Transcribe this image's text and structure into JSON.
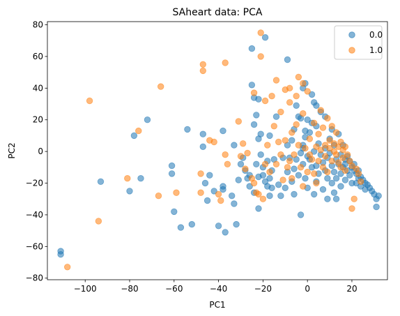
{
  "chart_data": {
    "type": "scatter",
    "title": "SAheart data: PCA",
    "xlabel": "PC1",
    "ylabel": "PC2",
    "xlim": [
      -117,
      36
    ],
    "ylim": [
      -81,
      82
    ],
    "x_ticks": [
      -100,
      -80,
      -60,
      -40,
      -20,
      0,
      20
    ],
    "y_ticks": [
      -80,
      -60,
      -40,
      -20,
      0,
      20,
      40,
      60,
      80
    ],
    "grid": false,
    "legend_position": "top-right",
    "series": [
      {
        "name": "0.0",
        "color": "#1f77b4",
        "points": [
          [
            -111,
            -63
          ],
          [
            -111,
            -65
          ],
          [
            -93,
            -19
          ],
          [
            -80,
            -25
          ],
          [
            -78,
            10
          ],
          [
            -75,
            -17
          ],
          [
            -72,
            20
          ],
          [
            -61,
            -9
          ],
          [
            -61,
            -14
          ],
          [
            -60,
            -38
          ],
          [
            -57,
            -48
          ],
          [
            -54,
            14
          ],
          [
            -52,
            -46
          ],
          [
            -47,
            11
          ],
          [
            -47,
            3
          ],
          [
            -46,
            -20
          ],
          [
            -45,
            -31
          ],
          [
            -44,
            -15
          ],
          [
            -42,
            -25
          ],
          [
            -40,
            -47
          ],
          [
            -38,
            -22
          ],
          [
            -38,
            -24
          ],
          [
            -38,
            13
          ],
          [
            -37,
            -51
          ],
          [
            -34,
            -28
          ],
          [
            -33,
            4
          ],
          [
            -33,
            -33
          ],
          [
            -32,
            -46
          ],
          [
            -31,
            -18
          ],
          [
            -30,
            -8
          ],
          [
            -29,
            -4
          ],
          [
            -28,
            -12
          ],
          [
            -27,
            -17
          ],
          [
            -26,
            -15
          ],
          [
            -26,
            -22
          ],
          [
            -24,
            -26
          ],
          [
            -23,
            -8
          ],
          [
            -23,
            23
          ],
          [
            -22,
            -36
          ],
          [
            -22,
            -16
          ],
          [
            -22,
            33
          ],
          [
            -21,
            -2
          ],
          [
            -21,
            11
          ],
          [
            -20,
            -10
          ],
          [
            -20,
            -15
          ],
          [
            -19,
            -19
          ],
          [
            -19,
            72
          ],
          [
            -18,
            -6
          ],
          [
            -18,
            -22
          ],
          [
            -17,
            10
          ],
          [
            -17,
            -17
          ],
          [
            -17,
            -28
          ],
          [
            -16,
            -23
          ],
          [
            -16,
            -12
          ],
          [
            -15,
            -5
          ],
          [
            -14,
            22
          ],
          [
            -13,
            -21
          ],
          [
            -12,
            -28
          ],
          [
            -11,
            -4
          ],
          [
            -10,
            -23
          ],
          [
            -9,
            -13
          ],
          [
            -9,
            4
          ],
          [
            -8,
            -4
          ],
          [
            -7,
            -19
          ],
          [
            -7,
            7
          ],
          [
            -6,
            -11
          ],
          [
            -6,
            -27
          ],
          [
            -5,
            -5
          ],
          [
            -5,
            29
          ],
          [
            -4,
            -15
          ],
          [
            -3,
            21
          ],
          [
            -3,
            -1
          ],
          [
            -3,
            -40
          ],
          [
            -2,
            2
          ],
          [
            -2,
            -8
          ],
          [
            -1,
            -17
          ],
          [
            -1,
            9
          ],
          [
            0,
            -23
          ],
          [
            0,
            20
          ],
          [
            0,
            -3
          ],
          [
            1,
            12
          ],
          [
            1,
            -5
          ],
          [
            2,
            -10
          ],
          [
            2,
            18
          ],
          [
            3,
            -27
          ],
          [
            3,
            0
          ],
          [
            4,
            -9
          ],
          [
            4,
            -19
          ],
          [
            4,
            16
          ],
          [
            5,
            5
          ],
          [
            5,
            -14
          ],
          [
            6,
            -2
          ],
          [
            6,
            25
          ],
          [
            7,
            -7
          ],
          [
            7,
            -24
          ],
          [
            8,
            -12
          ],
          [
            8,
            2
          ],
          [
            8,
            22
          ],
          [
            9,
            -4
          ],
          [
            9,
            -30
          ],
          [
            9,
            -17
          ],
          [
            10,
            8
          ],
          [
            10,
            -1
          ],
          [
            11,
            -9
          ],
          [
            11,
            -20
          ],
          [
            11,
            14
          ],
          [
            12,
            -13
          ],
          [
            12,
            -26
          ],
          [
            12,
            4
          ],
          [
            13,
            -5
          ],
          [
            13,
            -17
          ],
          [
            13,
            -30
          ],
          [
            14,
            11
          ],
          [
            14,
            -8
          ],
          [
            15,
            -2
          ],
          [
            15,
            -14
          ],
          [
            15,
            -22
          ],
          [
            16,
            -10
          ],
          [
            16,
            4
          ],
          [
            17,
            -5
          ],
          [
            17,
            -18
          ],
          [
            17,
            -8
          ],
          [
            18,
            -3
          ],
          [
            18,
            -12
          ],
          [
            19,
            -6
          ],
          [
            19,
            -15
          ],
          [
            20,
            -10
          ],
          [
            20,
            -20
          ],
          [
            21,
            -8
          ],
          [
            21,
            -12
          ],
          [
            22,
            -14
          ],
          [
            22,
            -20
          ],
          [
            23,
            -12
          ],
          [
            23,
            -17
          ],
          [
            24,
            -16
          ],
          [
            24,
            -22
          ],
          [
            25,
            -18
          ],
          [
            26,
            -20
          ],
          [
            26,
            -24
          ],
          [
            27,
            -21
          ],
          [
            28,
            -23
          ],
          [
            29,
            -25
          ],
          [
            30,
            -27
          ],
          [
            31,
            -30
          ],
          [
            31,
            -35
          ],
          [
            32,
            -28
          ],
          [
            -25,
            65
          ],
          [
            -25,
            42
          ],
          [
            -24,
            34
          ],
          [
            -24,
            17
          ],
          [
            -22,
            8
          ],
          [
            -9,
            58
          ],
          [
            -6,
            14
          ],
          [
            -4,
            22
          ],
          [
            -2,
            40
          ],
          [
            -1,
            43
          ],
          [
            2,
            36
          ],
          [
            3,
            31
          ],
          [
            4,
            29
          ],
          [
            -1,
            13
          ],
          [
            -2,
            4
          ]
        ]
      },
      {
        "name": "1.0",
        "color": "#ff7f0e",
        "points": [
          [
            -108,
            -73
          ],
          [
            -98,
            32
          ],
          [
            -94,
            -44
          ],
          [
            -81,
            -17
          ],
          [
            -76,
            13
          ],
          [
            -67,
            -28
          ],
          [
            -66,
            41
          ],
          [
            -59,
            -26
          ],
          [
            -44,
            7
          ],
          [
            -48,
            -14
          ],
          [
            -47,
            51
          ],
          [
            -47,
            55
          ],
          [
            -48,
            -26
          ],
          [
            -42,
            6
          ],
          [
            -40,
            -27
          ],
          [
            -39,
            -31
          ],
          [
            -37,
            56
          ],
          [
            -37,
            -2
          ],
          [
            -30,
            -3
          ],
          [
            -28,
            -11
          ],
          [
            -27,
            -1
          ],
          [
            -25,
            -17
          ],
          [
            -24,
            -20
          ],
          [
            -23,
            -26
          ],
          [
            -22,
            -27
          ],
          [
            -21,
            75
          ],
          [
            -21,
            60
          ],
          [
            -20,
            -30
          ],
          [
            -19,
            -8
          ],
          [
            -19,
            32
          ],
          [
            -18,
            4
          ],
          [
            -17,
            -13
          ],
          [
            -16,
            35
          ],
          [
            -15,
            16
          ],
          [
            -14,
            -8
          ],
          [
            -14,
            45
          ],
          [
            -13,
            6
          ],
          [
            -12,
            -2
          ],
          [
            -12,
            25
          ],
          [
            -11,
            -18
          ],
          [
            -10,
            39
          ],
          [
            -10,
            7
          ],
          [
            -9,
            -10
          ],
          [
            -8,
            -6
          ],
          [
            -8,
            31
          ],
          [
            -7,
            12
          ],
          [
            -7,
            -17
          ],
          [
            -6,
            -2
          ],
          [
            -5,
            35
          ],
          [
            -5,
            17
          ],
          [
            -4,
            47
          ],
          [
            -4,
            4
          ],
          [
            -3,
            -10
          ],
          [
            -2,
            -22
          ],
          [
            -2,
            24
          ],
          [
            -1,
            2
          ],
          [
            0,
            -13
          ],
          [
            0,
            38
          ],
          [
            1,
            8
          ],
          [
            1,
            -2
          ],
          [
            2,
            -5
          ],
          [
            3,
            18
          ],
          [
            3,
            -14
          ],
          [
            4,
            3
          ],
          [
            4,
            -20
          ],
          [
            5,
            11
          ],
          [
            5,
            -6
          ],
          [
            6,
            26
          ],
          [
            6,
            1
          ],
          [
            7,
            -10
          ],
          [
            7,
            15
          ],
          [
            8,
            4
          ],
          [
            8,
            -3
          ],
          [
            9,
            21
          ],
          [
            9,
            -13
          ],
          [
            10,
            7
          ],
          [
            10,
            2
          ],
          [
            11,
            -6
          ],
          [
            11,
            16
          ],
          [
            12,
            5
          ],
          [
            12,
            0
          ],
          [
            13,
            -2
          ],
          [
            13,
            12
          ],
          [
            14,
            3
          ],
          [
            14,
            -7
          ],
          [
            15,
            6
          ],
          [
            15,
            -10
          ],
          [
            16,
            1
          ],
          [
            16,
            -4
          ],
          [
            17,
            3
          ],
          [
            17,
            -12
          ],
          [
            18,
            -2
          ],
          [
            19,
            -6
          ],
          [
            20,
            -9
          ],
          [
            21,
            -30
          ],
          [
            22,
            -11
          ],
          [
            23,
            -14
          ],
          [
            24,
            -19
          ],
          [
            20,
            -36
          ],
          [
            -2,
            43
          ],
          [
            -8,
            40
          ],
          [
            -24,
            37
          ],
          [
            -31,
            19
          ],
          [
            -29,
            5
          ],
          [
            -36,
            -8
          ]
        ]
      }
    ]
  }
}
